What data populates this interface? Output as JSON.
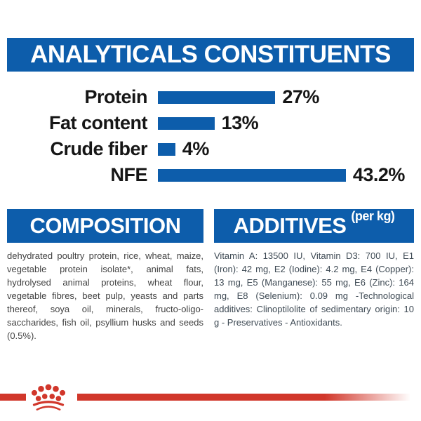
{
  "title": "ANALYTICALS CONSTITUENTS",
  "colors": {
    "accent_blue": "#0d5dab",
    "brand_red": "#d1372b",
    "chart_text": "#161616",
    "composition_text": "#424242",
    "additives_text": "#3e4a54"
  },
  "chart_data": {
    "type": "bar",
    "orientation": "horizontal",
    "title": "ANALYTICALS CONSTITUENTS",
    "categories": [
      "Protein",
      "Fat content",
      "Crude fiber",
      "NFE"
    ],
    "values": [
      27,
      13,
      4,
      43.2
    ],
    "value_labels": [
      "27%",
      "13%",
      "4%",
      "43.2%"
    ],
    "unit": "%",
    "xlim": [
      0,
      50
    ],
    "grid": false,
    "legend": false,
    "bar_color": "#0d5dab"
  },
  "composition": {
    "heading": "COMPOSITION",
    "body": "dehydrated poultry protein, rice, wheat, maize, vegetable protein isolate*, animal fats, hydrolysed animal proteins, wheat flour, vegetable fibres, beet pulp, yeasts and parts thereof, soya oil, minerals, fructo-oligo-saccharides, fish oil, psyllium husks and seeds (0.5%)."
  },
  "additives": {
    "heading": "ADDITIVES",
    "heading_suffix": "(per kg)",
    "body": "Vitamin A: 13500 IU, Vitamin D3: 700 IU, E1 (Iron): 42 mg, E2 (Iodine): 4.2 mg, E4 (Copper): 13 mg, E5 (Manganese): 55 mg, E6 (Zinc): 164 mg, E8 (Selenium): 0.09 mg -Technological additives: Clinoptilolite of sedimentary origin: 10 g - Preservatives - Antioxidants."
  },
  "footer": {
    "logo": "royal-canin-crown"
  }
}
